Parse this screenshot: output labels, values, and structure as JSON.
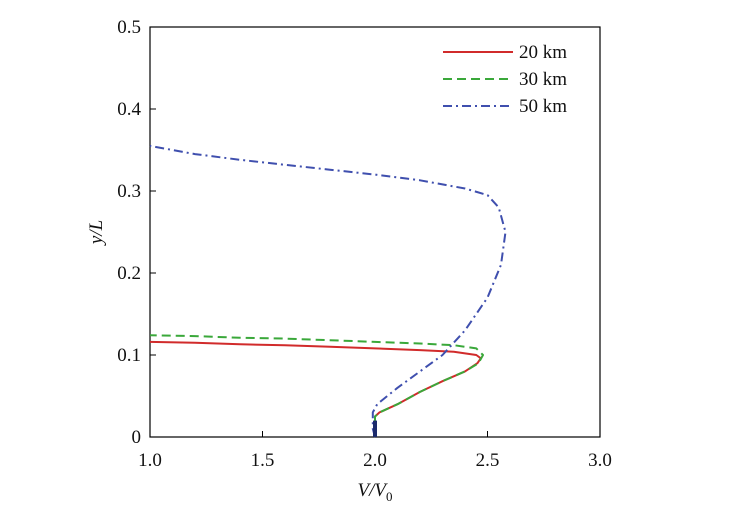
{
  "chart_data": {
    "type": "line",
    "xlabel": "V/V0",
    "xlabel_parts": {
      "main": "V/V",
      "subscript": "0"
    },
    "ylabel": "y/L",
    "xlim": [
      1.0,
      3.0
    ],
    "ylim": [
      0,
      0.5
    ],
    "x_ticks": [
      1.0,
      1.5,
      2.0,
      2.5,
      3.0
    ],
    "x_tick_labels": [
      "1.0",
      "1.5",
      "2.0",
      "2.5",
      "3.0"
    ],
    "y_ticks": [
      0,
      0.1,
      0.2,
      0.3,
      0.4,
      0.5
    ],
    "y_tick_labels": [
      "0",
      "0.1",
      "0.2",
      "0.3",
      "0.4",
      "0.5"
    ],
    "grid": false,
    "legend": "top-right",
    "series": [
      {
        "name": "20 km",
        "color": "#d12b2b",
        "dash": "solid",
        "points": [
          [
            2.0,
            0.0
          ],
          [
            2.0,
            0.01
          ],
          [
            2.0,
            0.02
          ],
          [
            2.0,
            0.025
          ],
          [
            2.02,
            0.03
          ],
          [
            2.1,
            0.04
          ],
          [
            2.2,
            0.055
          ],
          [
            2.3,
            0.068
          ],
          [
            2.4,
            0.08
          ],
          [
            2.455,
            0.09
          ],
          [
            2.47,
            0.096
          ],
          [
            2.45,
            0.1
          ],
          [
            2.35,
            0.104
          ],
          [
            2.2,
            0.106
          ],
          [
            2.0,
            0.108
          ],
          [
            1.8,
            0.11
          ],
          [
            1.6,
            0.112
          ],
          [
            1.4,
            0.113
          ],
          [
            1.2,
            0.115
          ],
          [
            1.0,
            0.116
          ]
        ]
      },
      {
        "name": "30 km",
        "color": "#3aa83a",
        "dash": "dashed",
        "points": [
          [
            2.0,
            0.0
          ],
          [
            2.0,
            0.01
          ],
          [
            2.0,
            0.02
          ],
          [
            2.0,
            0.025
          ],
          [
            2.02,
            0.03
          ],
          [
            2.1,
            0.04
          ],
          [
            2.2,
            0.055
          ],
          [
            2.3,
            0.068
          ],
          [
            2.4,
            0.08
          ],
          [
            2.46,
            0.09
          ],
          [
            2.48,
            0.1
          ],
          [
            2.45,
            0.108
          ],
          [
            2.35,
            0.112
          ],
          [
            2.2,
            0.114
          ],
          [
            2.0,
            0.116
          ],
          [
            1.8,
            0.118
          ],
          [
            1.6,
            0.12
          ],
          [
            1.4,
            0.121
          ],
          [
            1.2,
            0.123
          ],
          [
            1.0,
            0.124
          ]
        ]
      },
      {
        "name": "50 km",
        "color": "#3f4fae",
        "dash": "dashdot",
        "points": [
          [
            2.0,
            0.0
          ],
          [
            1.99,
            0.01
          ],
          [
            1.99,
            0.02
          ],
          [
            1.99,
            0.03
          ],
          [
            2.01,
            0.04
          ],
          [
            2.1,
            0.06
          ],
          [
            2.2,
            0.08
          ],
          [
            2.3,
            0.1
          ],
          [
            2.4,
            0.13
          ],
          [
            2.5,
            0.17
          ],
          [
            2.56,
            0.21
          ],
          [
            2.58,
            0.25
          ],
          [
            2.55,
            0.28
          ],
          [
            2.5,
            0.295
          ],
          [
            2.4,
            0.303
          ],
          [
            2.2,
            0.313
          ],
          [
            2.0,
            0.32
          ],
          [
            1.8,
            0.326
          ],
          [
            1.6,
            0.332
          ],
          [
            1.4,
            0.338
          ],
          [
            1.2,
            0.345
          ],
          [
            1.0,
            0.355
          ]
        ]
      }
    ]
  }
}
